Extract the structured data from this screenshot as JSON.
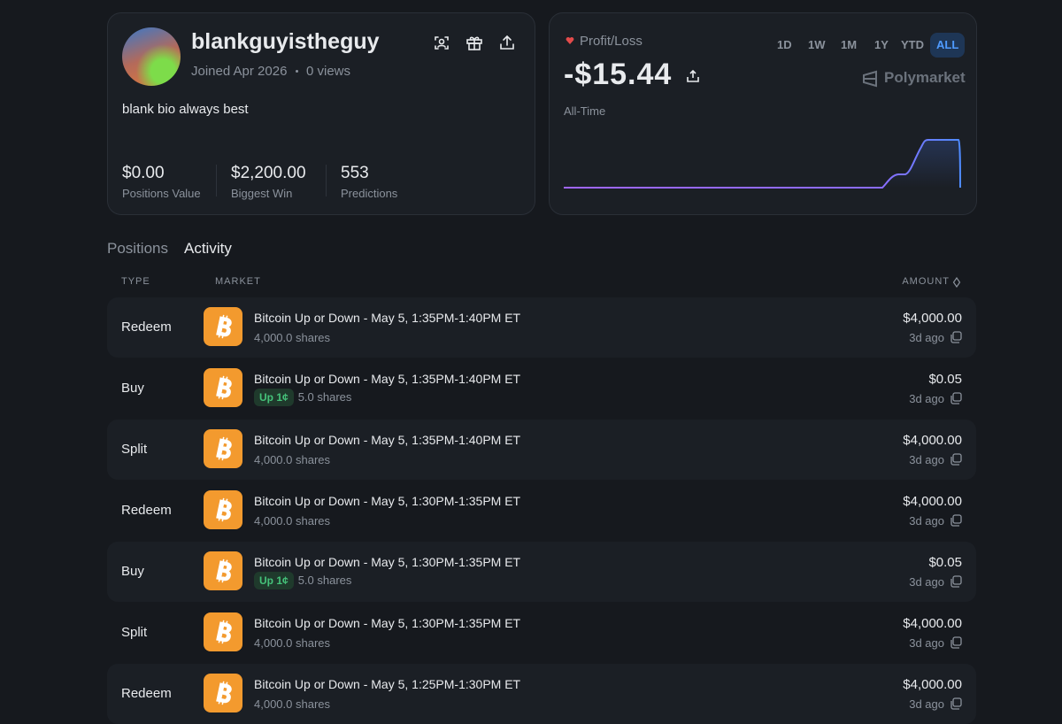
{
  "profile": {
    "username": "blankguyistheguy",
    "joined": "Joined Apr 2026",
    "views": "0 views",
    "bio": "blank bio always best",
    "stats": [
      {
        "value": "$0.00",
        "label": "Positions Value"
      },
      {
        "value": "$2,200.00",
        "label": "Biggest Win"
      },
      {
        "value": "553",
        "label": "Predictions"
      }
    ]
  },
  "pnl": {
    "label": "Profit/Loss",
    "amount": "-$15.44",
    "period": "All-Time",
    "brand": "Polymarket",
    "timeframes": [
      "1D",
      "1W",
      "1M",
      "1Y",
      "YTD",
      "ALL"
    ],
    "selected_timeframe": "ALL"
  },
  "tabs": {
    "items": [
      "Positions",
      "Activity"
    ],
    "selected": "Activity"
  },
  "table": {
    "headers": {
      "type": "TYPE",
      "market": "MARKET",
      "amount": "AMOUNT"
    },
    "rows": [
      {
        "type": "Redeem",
        "market": "Bitcoin Up or Down - May 5, 1:35PM-1:40PM ET",
        "badge": null,
        "shares": "4,000.0 shares",
        "amount": "$4,000.00",
        "time": "3d ago"
      },
      {
        "type": "Buy",
        "market": "Bitcoin Up or Down - May 5, 1:35PM-1:40PM ET",
        "badge": "Up 1¢",
        "shares": "5.0 shares",
        "amount": "$0.05",
        "time": "3d ago"
      },
      {
        "type": "Split",
        "market": "Bitcoin Up or Down - May 5, 1:35PM-1:40PM ET",
        "badge": null,
        "shares": "4,000.0 shares",
        "amount": "$4,000.00",
        "time": "3d ago"
      },
      {
        "type": "Redeem",
        "market": "Bitcoin Up or Down - May 5, 1:30PM-1:35PM ET",
        "badge": null,
        "shares": "4,000.0 shares",
        "amount": "$4,000.00",
        "time": "3d ago"
      },
      {
        "type": "Buy",
        "market": "Bitcoin Up or Down - May 5, 1:30PM-1:35PM ET",
        "badge": "Up 1¢",
        "shares": "5.0 shares",
        "amount": "$0.05",
        "time": "3d ago"
      },
      {
        "type": "Split",
        "market": "Bitcoin Up or Down - May 5, 1:30PM-1:35PM ET",
        "badge": null,
        "shares": "4,000.0 shares",
        "amount": "$4,000.00",
        "time": "3d ago"
      },
      {
        "type": "Redeem",
        "market": "Bitcoin Up or Down - May 5, 1:25PM-1:30PM ET",
        "badge": null,
        "shares": "4,000.0 shares",
        "amount": "$4,000.00",
        "time": "3d ago"
      }
    ]
  }
}
